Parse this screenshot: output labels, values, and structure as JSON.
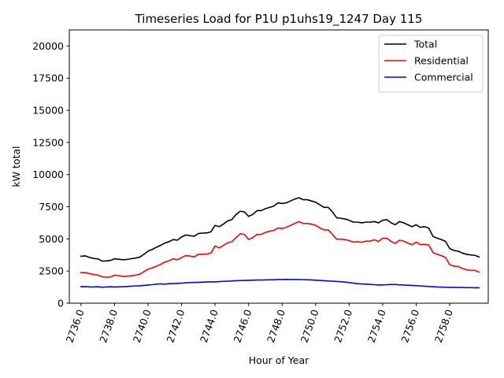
{
  "chart_data": {
    "type": "line",
    "title": "Timeseries Load for P1U p1uhs19_1247  Day 115",
    "xlabel": "Hour of Year",
    "ylabel": "kW total",
    "xlim": [
      2735.3,
      2760.3
    ],
    "ylim": [
      0,
      21250
    ],
    "x_ticks": [
      2736,
      2738,
      2740,
      2742,
      2744,
      2746,
      2748,
      2750,
      2752,
      2754,
      2756,
      2758
    ],
    "x_tick_labels": [
      "2736.0",
      "2738.0",
      "2740.0",
      "2742.0",
      "2744.0",
      "2746.0",
      "2748.0",
      "2750.0",
      "2752.0",
      "2754.0",
      "2756.0",
      "2758.0"
    ],
    "y_ticks": [
      0,
      2500,
      5000,
      7500,
      10000,
      12500,
      15000,
      17500,
      20000
    ],
    "y_tick_labels": [
      "0",
      "2500",
      "5000",
      "7500",
      "10000",
      "12500",
      "15000",
      "17500",
      "20000"
    ],
    "legend_position": "top-right",
    "x_start": 2736.0,
    "x_step": 0.25,
    "series": [
      {
        "name": "Total",
        "color": "#000000",
        "values": [
          3650,
          3680,
          3560,
          3480,
          3450,
          3280,
          3290,
          3320,
          3450,
          3420,
          3380,
          3400,
          3460,
          3510,
          3580,
          3800,
          4050,
          4180,
          4350,
          4500,
          4680,
          4780,
          4950,
          4900,
          5150,
          5300,
          5250,
          5200,
          5420,
          5450,
          5460,
          5550,
          6050,
          5950,
          6150,
          6400,
          6500,
          6900,
          7150,
          7100,
          6750,
          6900,
          7200,
          7200,
          7350,
          7450,
          7550,
          7800,
          7750,
          7800,
          7950,
          8100,
          8200,
          8050,
          8050,
          7950,
          7850,
          7650,
          7450,
          7450,
          7100,
          6650,
          6600,
          6550,
          6450,
          6300,
          6300,
          6250,
          6300,
          6300,
          6350,
          6250,
          6450,
          6500,
          6250,
          6100,
          6350,
          6250,
          6100,
          5950,
          6100,
          5900,
          5950,
          5850,
          5200,
          5050,
          4950,
          4800,
          4250,
          4100,
          4050,
          3900,
          3800,
          3750,
          3720,
          3600
        ]
      },
      {
        "name": "Residential",
        "color": "#ff0000",
        "values": [
          2380,
          2380,
          2300,
          2230,
          2190,
          2050,
          2020,
          2030,
          2180,
          2150,
          2080,
          2100,
          2130,
          2180,
          2250,
          2450,
          2650,
          2750,
          2880,
          3020,
          3200,
          3300,
          3450,
          3380,
          3550,
          3700,
          3660,
          3600,
          3800,
          3800,
          3820,
          3900,
          4450,
          4300,
          4500,
          4700,
          4780,
          5100,
          5400,
          5350,
          4950,
          5100,
          5350,
          5350,
          5500,
          5600,
          5650,
          5850,
          5800,
          5900,
          6050,
          6200,
          6350,
          6200,
          6200,
          6150,
          6050,
          5850,
          5700,
          5700,
          5350,
          4980,
          4980,
          4950,
          4870,
          4750,
          4780,
          4730,
          4830,
          4830,
          4930,
          4800,
          5050,
          5050,
          4800,
          4650,
          4900,
          4830,
          4670,
          4550,
          4750,
          4550,
          4580,
          4520,
          3950,
          3800,
          3700,
          3550,
          3000,
          2880,
          2850,
          2700,
          2600,
          2550,
          2550,
          2420
        ]
      },
      {
        "name": "Commercial",
        "color": "#0000ff",
        "values": [
          1280,
          1300,
          1270,
          1260,
          1280,
          1240,
          1260,
          1280,
          1260,
          1270,
          1280,
          1300,
          1320,
          1340,
          1350,
          1380,
          1410,
          1440,
          1480,
          1500,
          1480,
          1520,
          1520,
          1540,
          1560,
          1580,
          1600,
          1620,
          1620,
          1640,
          1650,
          1660,
          1660,
          1680,
          1700,
          1710,
          1730,
          1750,
          1760,
          1770,
          1780,
          1790,
          1800,
          1800,
          1810,
          1820,
          1820,
          1840,
          1840,
          1850,
          1840,
          1840,
          1840,
          1830,
          1820,
          1810,
          1790,
          1770,
          1750,
          1730,
          1710,
          1690,
          1670,
          1640,
          1600,
          1560,
          1520,
          1500,
          1480,
          1460,
          1440,
          1420,
          1420,
          1440,
          1450,
          1450,
          1430,
          1410,
          1400,
          1380,
          1360,
          1340,
          1320,
          1300,
          1280,
          1260,
          1250,
          1240,
          1230,
          1230,
          1220,
          1220,
          1210,
          1210,
          1200,
          1200
        ]
      }
    ]
  }
}
